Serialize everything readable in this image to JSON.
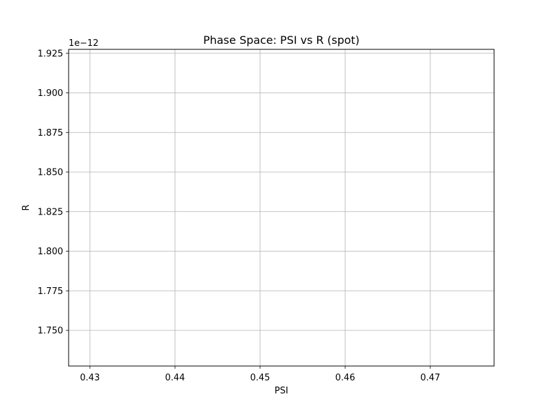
{
  "chart_data": {
    "type": "line",
    "title": "Phase Space: PSI vs R (spot)",
    "xlabel": "PSI",
    "ylabel": "R",
    "xlim": [
      0.4275,
      0.4775
    ],
    "ylim": [
      1.7275e-12,
      1.9275e-12
    ],
    "x_ticks": [
      0.43,
      0.44,
      0.45,
      0.46,
      0.47
    ],
    "x_tick_labels": [
      "0.43",
      "0.44",
      "0.45",
      "0.46",
      "0.47"
    ],
    "y_ticks": [
      1.75,
      1.775,
      1.8,
      1.825,
      1.85,
      1.875,
      1.9,
      1.925
    ],
    "y_tick_labels": [
      "1.750",
      "1.775",
      "1.800",
      "1.825",
      "1.850",
      "1.875",
      "1.900",
      "1.925"
    ],
    "y_offset_label": "1e−12",
    "grid": true,
    "series": []
  }
}
